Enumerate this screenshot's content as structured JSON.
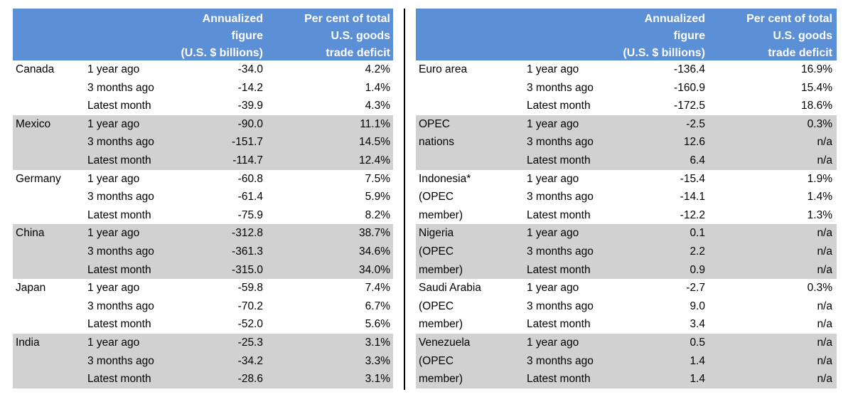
{
  "headers": {
    "figure": [
      "Annualized",
      "figure",
      "(U.S. $ billions)"
    ],
    "percent": [
      "Per cent of total",
      "U.S. goods",
      "trade deficit"
    ]
  },
  "period_labels": [
    "1 year ago",
    "3 months ago",
    "Latest month"
  ],
  "left_table": [
    {
      "name_lines": [
        "Canada",
        "",
        ""
      ],
      "figures": [
        "-34.0",
        "-14.2",
        "-39.9"
      ],
      "percents": [
        "4.2%",
        "1.4%",
        "4.3%"
      ]
    },
    {
      "name_lines": [
        "Mexico",
        "",
        ""
      ],
      "figures": [
        "-90.0",
        "-151.7",
        "-114.7"
      ],
      "percents": [
        "11.1%",
        "14.5%",
        "12.4%"
      ]
    },
    {
      "name_lines": [
        "Germany",
        "",
        ""
      ],
      "figures": [
        "-60.8",
        "-61.4",
        "-75.9"
      ],
      "percents": [
        "7.5%",
        "5.9%",
        "8.2%"
      ]
    },
    {
      "name_lines": [
        "China",
        "",
        ""
      ],
      "figures": [
        "-312.8",
        "-361.3",
        "-315.0"
      ],
      "percents": [
        "38.7%",
        "34.6%",
        "34.0%"
      ]
    },
    {
      "name_lines": [
        "Japan",
        "",
        ""
      ],
      "figures": [
        "-59.8",
        "-70.2",
        "-52.0"
      ],
      "percents": [
        "7.4%",
        "6.7%",
        "5.6%"
      ]
    },
    {
      "name_lines": [
        "India",
        "",
        ""
      ],
      "figures": [
        "-25.3",
        "-34.2",
        "-28.6"
      ],
      "percents": [
        "3.1%",
        "3.3%",
        "3.1%"
      ]
    }
  ],
  "right_table": [
    {
      "name_lines": [
        "Euro area",
        "",
        ""
      ],
      "figures": [
        "-136.4",
        "-160.9",
        "-172.5"
      ],
      "percents": [
        "16.9%",
        "15.4%",
        "18.6%"
      ]
    },
    {
      "name_lines": [
        "OPEC",
        "nations",
        ""
      ],
      "figures": [
        "-2.5",
        "12.6",
        "6.4"
      ],
      "percents": [
        "0.3%",
        "n/a",
        "n/a"
      ]
    },
    {
      "name_lines": [
        "Indonesia*",
        "(OPEC",
        "member)"
      ],
      "figures": [
        "-15.4",
        "-14.1",
        "-12.2"
      ],
      "percents": [
        "1.9%",
        "1.4%",
        "1.3%"
      ]
    },
    {
      "name_lines": [
        "Nigeria",
        "(OPEC",
        "member)"
      ],
      "figures": [
        "0.1",
        "2.2",
        "0.9"
      ],
      "percents": [
        "n/a",
        "n/a",
        "n/a"
      ]
    },
    {
      "name_lines": [
        "Saudi Arabia",
        "(OPEC",
        "member)"
      ],
      "figures": [
        "-2.7",
        "9.0",
        "3.4"
      ],
      "percents": [
        "0.3%",
        "n/a",
        "n/a"
      ]
    },
    {
      "name_lines": [
        "Venezuela",
        "(OPEC",
        "member)"
      ],
      "figures": [
        "0.5",
        "1.4",
        "1.4"
      ],
      "percents": [
        "n/a",
        "n/a",
        "n/a"
      ]
    }
  ],
  "colors": {
    "header_bg": "#5b8fd6",
    "header_text": "#ffffff",
    "shade_row": "#d1d1d1",
    "divider": "#000000"
  }
}
